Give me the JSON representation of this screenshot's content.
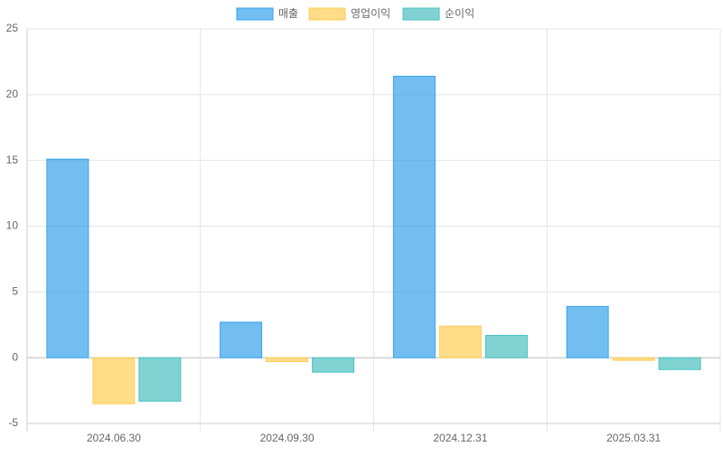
{
  "chart_data": {
    "type": "bar",
    "categories": [
      "2024.06.30",
      "2024.09.30",
      "2024.12.31",
      "2025.03.31"
    ],
    "series": [
      {
        "name": "매출",
        "color": "#36a2eb",
        "values": [
          15.1,
          2.7,
          21.4,
          3.9
        ]
      },
      {
        "name": "영업이익",
        "color": "#ffcd56",
        "values": [
          -3.5,
          -0.3,
          2.4,
          -0.2
        ]
      },
      {
        "name": "순이익",
        "color": "#4bc0c0",
        "values": [
          -3.3,
          -1.1,
          1.7,
          -0.9
        ]
      }
    ],
    "ylim": [
      -5,
      25
    ],
    "yticks": [
      -5,
      0,
      5,
      10,
      15,
      20,
      25
    ],
    "grid": true,
    "legend": "top"
  }
}
